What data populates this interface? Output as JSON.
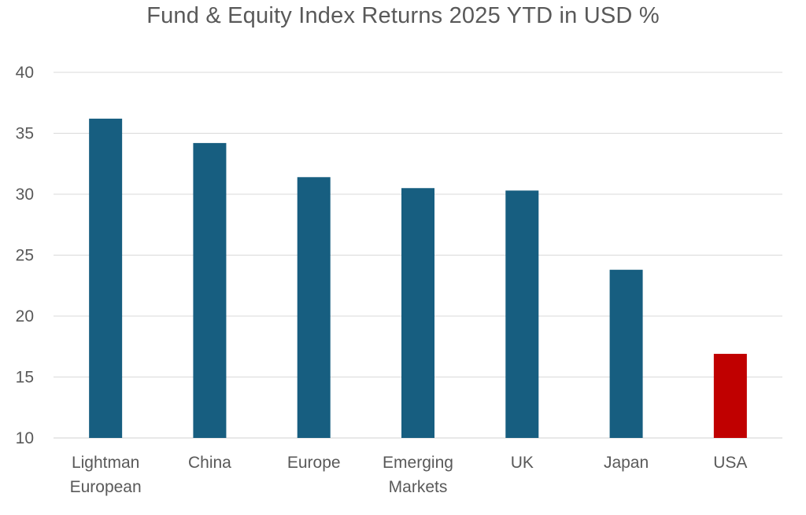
{
  "chart_data": {
    "type": "bar",
    "title": "Fund & Equity Index Returns 2025 YTD in USD %",
    "xlabel": "",
    "ylabel": "",
    "categories": [
      "Lightman European",
      "China",
      "Europe",
      "Emerging Markets",
      "UK",
      "Japan",
      "USA"
    ],
    "category_lines": [
      [
        "Lightman",
        "European"
      ],
      [
        "China"
      ],
      [
        "Europe"
      ],
      [
        "Emerging",
        "Markets"
      ],
      [
        "UK"
      ],
      [
        "Japan"
      ],
      [
        "USA"
      ]
    ],
    "values": [
      36.2,
      34.2,
      31.4,
      30.5,
      30.3,
      23.8,
      16.9
    ],
    "bar_colors": [
      "#175e80",
      "#175e80",
      "#175e80",
      "#175e80",
      "#175e80",
      "#175e80",
      "#c00000"
    ],
    "ylim": [
      10,
      40
    ],
    "yticks": [
      10,
      15,
      20,
      25,
      30,
      35,
      40
    ],
    "grid": true,
    "legend": "none"
  }
}
